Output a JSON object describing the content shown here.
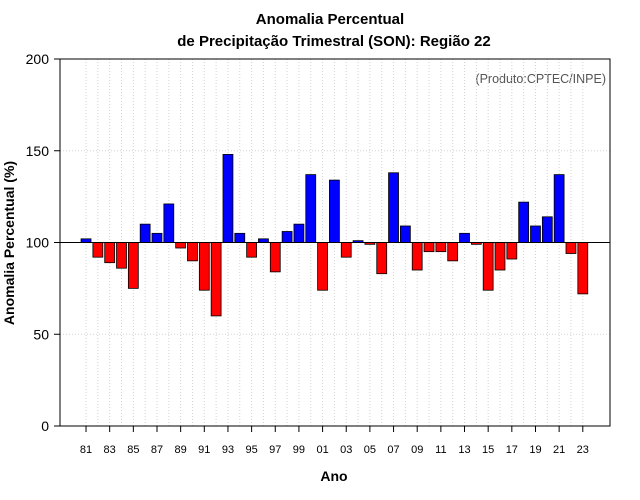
{
  "chart_data": {
    "type": "bar",
    "title_line1": "Anomalia Percentual",
    "title_line2": "de Precipitação Trimestral (SON): Região 22",
    "xlabel": "Ano",
    "ylabel": "Anomalia Percentual (%)",
    "credit": "(Produto:CPTEC/INPE)",
    "baseline": 100,
    "ylim": [
      0,
      200
    ],
    "yticks": [
      0,
      50,
      100,
      150,
      200
    ],
    "xtick_labels": [
      "81",
      "83",
      "85",
      "87",
      "89",
      "91",
      "93",
      "95",
      "97",
      "99",
      "01",
      "03",
      "05",
      "07",
      "09",
      "11",
      "13",
      "15",
      "17",
      "19",
      "21",
      "23"
    ],
    "grid": true,
    "colors": {
      "above": "#0000ff",
      "below": "#ff0000",
      "edge": "#000000",
      "grid": "#d3d3d3"
    },
    "categories": [
      "81",
      "82",
      "83",
      "84",
      "85",
      "86",
      "87",
      "88",
      "89",
      "90",
      "91",
      "92",
      "93",
      "94",
      "95",
      "96",
      "97",
      "98",
      "99",
      "00",
      "01",
      "02",
      "03",
      "04",
      "05",
      "06",
      "07",
      "08",
      "09",
      "10",
      "11",
      "12",
      "13",
      "14",
      "15",
      "16",
      "17",
      "18",
      "19",
      "20",
      "21",
      "22",
      "23"
    ],
    "values": [
      102,
      92,
      89,
      86,
      75,
      110,
      105,
      121,
      97,
      90,
      74,
      60,
      148,
      105,
      92,
      102,
      84,
      106,
      110,
      137,
      74,
      134,
      92,
      101,
      99,
      83,
      138,
      109,
      85,
      95,
      95,
      90,
      105,
      99,
      74,
      85,
      91,
      122,
      109,
      114,
      137,
      94,
      72
    ]
  }
}
